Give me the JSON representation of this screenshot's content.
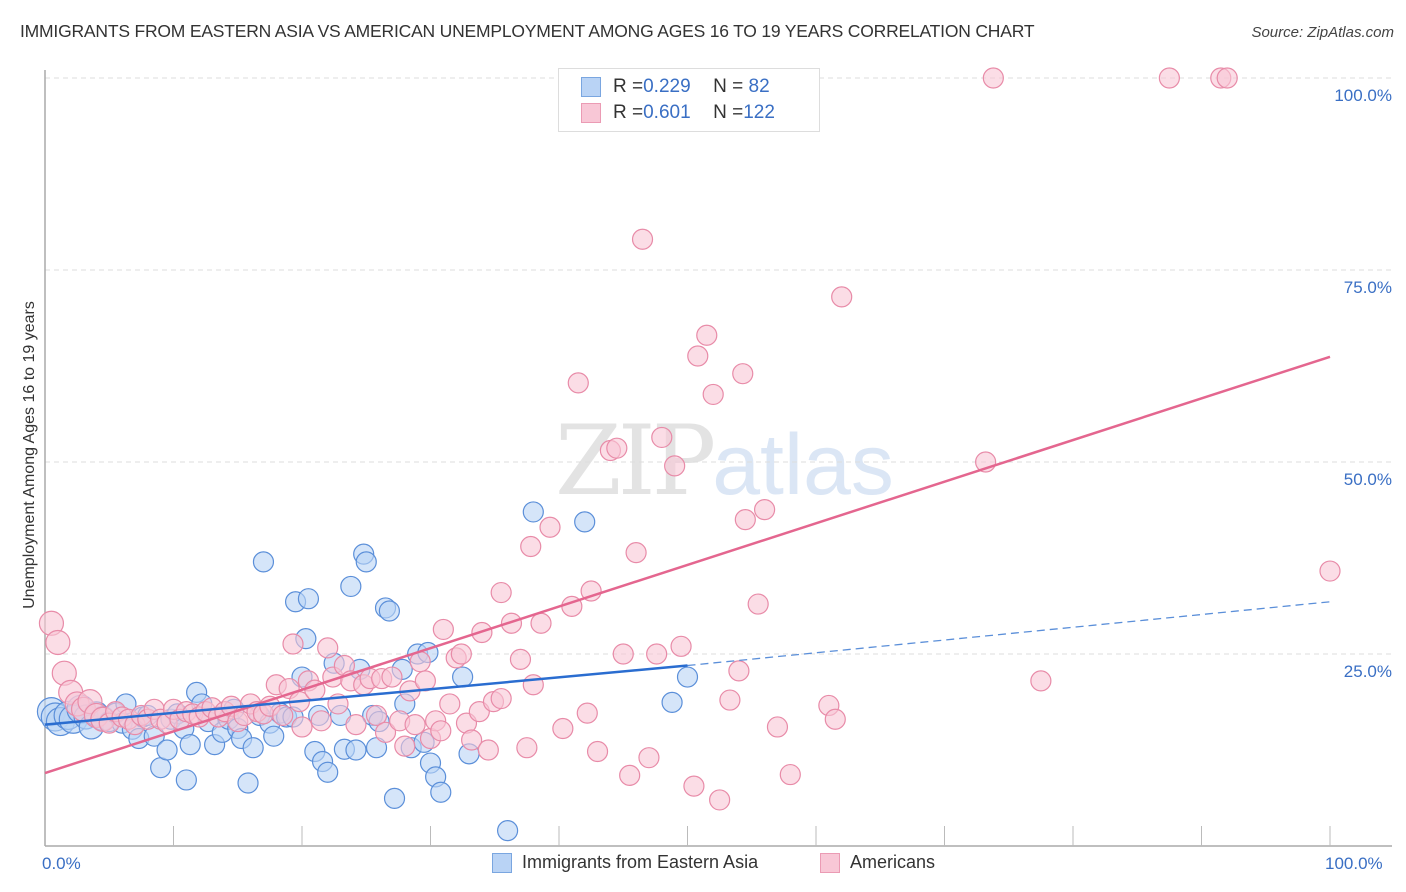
{
  "title": "IMMIGRANTS FROM EASTERN ASIA VS AMERICAN UNEMPLOYMENT AMONG AGES 16 TO 19 YEARS CORRELATION CHART",
  "source": "Source: ZipAtlas.com",
  "watermark": {
    "part1": "ZIP",
    "part2": "atlas"
  },
  "legend_top": [
    {
      "r_label": "R = ",
      "r_value": "0.229",
      "n_label": "N = ",
      "n_value": " 82"
    },
    {
      "r_label": "R = ",
      "r_value": "0.601",
      "n_label": "N = ",
      "n_value": "122"
    }
  ],
  "colors": {
    "blue_fill": "#b9d3f5",
    "blue_stroke": "#5b8fd9",
    "blue_line": "#2a6dd0",
    "pink_fill": "#f8c7d6",
    "pink_stroke": "#e88ba8",
    "pink_line": "#e4668f",
    "tick_label": "#3a6fc4",
    "grid": "#dddddd"
  },
  "chart_data": {
    "type": "scatter",
    "title": "IMMIGRANTS FROM EASTERN ASIA VS AMERICAN UNEMPLOYMENT AMONG AGES 16 TO 19 YEARS CORRELATION CHART",
    "xlabel": "",
    "ylabel": "Unemployment Among Ages 16 to 19 years",
    "xlim": [
      0,
      100
    ],
    "ylim": [
      0,
      100
    ],
    "x_tick_labels": [
      "0.0%",
      "100.0%"
    ],
    "y_tick_labels": [
      {
        "value": 25,
        "label": "25.0%"
      },
      {
        "value": 50,
        "label": "50.0%"
      },
      {
        "value": 75,
        "label": "75.0%"
      },
      {
        "value": 100,
        "label": "100.0%"
      }
    ],
    "grid": "horizontal-dashed",
    "legend_position": "bottom-center",
    "series": [
      {
        "name": "Immigrants from Eastern Asia",
        "r": 0.229,
        "n": 82,
        "trend": {
          "x0": 0,
          "y0": 15.8,
          "x1": 50,
          "y1": 23.5,
          "dashed_to": 100,
          "dashed_y": 31.8
        },
        "points": [
          [
            0.5,
            17.5
          ],
          [
            0.8,
            16.8
          ],
          [
            1.2,
            16.2
          ],
          [
            1.8,
            17.0
          ],
          [
            2.2,
            16.5
          ],
          [
            2.8,
            17.8
          ],
          [
            3.2,
            16.8
          ],
          [
            3.6,
            15.5
          ],
          [
            4.0,
            17.2
          ],
          [
            4.5,
            16.6
          ],
          [
            5.0,
            16.2
          ],
          [
            5.5,
            17.3
          ],
          [
            6.0,
            16.0
          ],
          [
            6.3,
            18.5
          ],
          [
            6.8,
            15.2
          ],
          [
            7.3,
            14.0
          ],
          [
            7.6,
            16.8
          ],
          [
            8.0,
            17.0
          ],
          [
            8.5,
            14.3
          ],
          [
            9.0,
            10.2
          ],
          [
            9.5,
            12.5
          ],
          [
            9.8,
            16.5
          ],
          [
            10.3,
            17.2
          ],
          [
            10.8,
            15.3
          ],
          [
            11.0,
            8.6
          ],
          [
            11.3,
            13.2
          ],
          [
            11.8,
            20.0
          ],
          [
            12.2,
            18.5
          ],
          [
            12.7,
            16.2
          ],
          [
            13.2,
            13.2
          ],
          [
            13.8,
            14.8
          ],
          [
            14.3,
            16.5
          ],
          [
            14.7,
            17.8
          ],
          [
            15.0,
            15.3
          ],
          [
            15.3,
            14.0
          ],
          [
            15.8,
            8.2
          ],
          [
            16.2,
            12.8
          ],
          [
            16.7,
            17.0
          ],
          [
            17.0,
            37.0
          ],
          [
            17.5,
            16.0
          ],
          [
            17.8,
            14.3
          ],
          [
            18.3,
            17.3
          ],
          [
            18.8,
            16.8
          ],
          [
            19.3,
            16.8
          ],
          [
            19.5,
            31.8
          ],
          [
            20.0,
            22.0
          ],
          [
            20.3,
            27.0
          ],
          [
            20.5,
            32.2
          ],
          [
            21.0,
            12.3
          ],
          [
            21.3,
            17.0
          ],
          [
            21.6,
            11.0
          ],
          [
            22.0,
            9.6
          ],
          [
            22.5,
            23.8
          ],
          [
            23.0,
            17.0
          ],
          [
            23.3,
            12.6
          ],
          [
            23.8,
            33.8
          ],
          [
            24.2,
            12.5
          ],
          [
            24.5,
            23.0
          ],
          [
            24.8,
            38.0
          ],
          [
            25.0,
            37.0
          ],
          [
            25.5,
            17.0
          ],
          [
            25.8,
            12.8
          ],
          [
            26.0,
            16.2
          ],
          [
            26.5,
            31.0
          ],
          [
            26.8,
            30.6
          ],
          [
            27.2,
            6.2
          ],
          [
            27.8,
            23.0
          ],
          [
            28.0,
            18.5
          ],
          [
            28.5,
            12.8
          ],
          [
            29.0,
            25.0
          ],
          [
            29.5,
            13.5
          ],
          [
            29.8,
            25.2
          ],
          [
            30.0,
            10.8
          ],
          [
            30.4,
            9.0
          ],
          [
            30.8,
            7.0
          ],
          [
            32.5,
            22.0
          ],
          [
            33.0,
            12.0
          ],
          [
            36.0,
            2.0
          ],
          [
            38.0,
            43.5
          ],
          [
            42.0,
            42.2
          ],
          [
            50.0,
            22.0
          ],
          [
            48.8,
            18.7
          ]
        ]
      },
      {
        "name": "Americans",
        "r": 0.601,
        "n": 122,
        "trend": {
          "x0": 0,
          "y0": 9.5,
          "x1": 100,
          "y1": 63.7
        },
        "points": [
          [
            0.5,
            29.0
          ],
          [
            1.0,
            26.5
          ],
          [
            1.5,
            22.5
          ],
          [
            2.0,
            20.0
          ],
          [
            2.5,
            18.5
          ],
          [
            3.0,
            17.8
          ],
          [
            3.5,
            18.8
          ],
          [
            4.0,
            17.0
          ],
          [
            4.5,
            16.5
          ],
          [
            5.0,
            16.0
          ],
          [
            5.5,
            17.5
          ],
          [
            6.0,
            16.8
          ],
          [
            6.5,
            16.5
          ],
          [
            7.0,
            15.8
          ],
          [
            7.5,
            17.0
          ],
          [
            8.0,
            16.5
          ],
          [
            8.5,
            17.8
          ],
          [
            9.0,
            16.5
          ],
          [
            9.5,
            16.0
          ],
          [
            10.0,
            17.8
          ],
          [
            10.5,
            16.5
          ],
          [
            11.0,
            17.5
          ],
          [
            11.5,
            17.2
          ],
          [
            12.0,
            16.8
          ],
          [
            12.5,
            17.5
          ],
          [
            13.0,
            18.0
          ],
          [
            13.5,
            16.8
          ],
          [
            14.0,
            17.5
          ],
          [
            14.5,
            18.2
          ],
          [
            15.0,
            16.2
          ],
          [
            15.5,
            17.0
          ],
          [
            16.0,
            18.5
          ],
          [
            16.5,
            17.5
          ],
          [
            17.0,
            17.2
          ],
          [
            17.5,
            18.2
          ],
          [
            18.0,
            21.0
          ],
          [
            18.5,
            17.0
          ],
          [
            19.0,
            20.5
          ],
          [
            19.3,
            26.3
          ],
          [
            19.8,
            18.8
          ],
          [
            20.0,
            15.5
          ],
          [
            20.5,
            21.5
          ],
          [
            21.0,
            20.3
          ],
          [
            21.5,
            16.3
          ],
          [
            22.0,
            25.8
          ],
          [
            22.4,
            22.0
          ],
          [
            22.8,
            18.5
          ],
          [
            23.3,
            23.5
          ],
          [
            23.8,
            21.5
          ],
          [
            24.2,
            15.8
          ],
          [
            24.8,
            21.0
          ],
          [
            25.3,
            21.8
          ],
          [
            25.8,
            17.0
          ],
          [
            26.2,
            21.8
          ],
          [
            26.5,
            14.8
          ],
          [
            27.0,
            22.0
          ],
          [
            27.6,
            16.3
          ],
          [
            28.0,
            13.0
          ],
          [
            28.4,
            20.2
          ],
          [
            28.8,
            15.8
          ],
          [
            29.2,
            24.0
          ],
          [
            29.6,
            21.5
          ],
          [
            30.0,
            14.0
          ],
          [
            30.4,
            16.3
          ],
          [
            30.8,
            15.0
          ],
          [
            31.0,
            28.2
          ],
          [
            31.5,
            18.5
          ],
          [
            32.0,
            24.5
          ],
          [
            32.4,
            25.0
          ],
          [
            32.8,
            16.0
          ],
          [
            33.2,
            13.8
          ],
          [
            33.8,
            17.5
          ],
          [
            34.0,
            27.8
          ],
          [
            34.5,
            12.5
          ],
          [
            34.9,
            18.8
          ],
          [
            35.5,
            19.2
          ],
          [
            35.5,
            33.0
          ],
          [
            36.3,
            29.0
          ],
          [
            37.0,
            24.3
          ],
          [
            37.5,
            12.8
          ],
          [
            37.8,
            39.0
          ],
          [
            38.0,
            21.0
          ],
          [
            38.6,
            29.0
          ],
          [
            39.3,
            41.5
          ],
          [
            40.3,
            15.3
          ],
          [
            41.0,
            31.2
          ],
          [
            41.5,
            60.3
          ],
          [
            42.2,
            17.3
          ],
          [
            42.5,
            33.2
          ],
          [
            43.0,
            12.3
          ],
          [
            44.0,
            51.5
          ],
          [
            44.5,
            51.8
          ],
          [
            45.0,
            25.0
          ],
          [
            45.5,
            9.2
          ],
          [
            46.0,
            38.2
          ],
          [
            46.5,
            79.0
          ],
          [
            47.0,
            11.5
          ],
          [
            47.6,
            25.0
          ],
          [
            48.0,
            53.2
          ],
          [
            49.0,
            49.5
          ],
          [
            49.5,
            26.0
          ],
          [
            50.5,
            7.8
          ],
          [
            50.8,
            63.8
          ],
          [
            51.5,
            66.5
          ],
          [
            52.0,
            58.8
          ],
          [
            52.5,
            6.0
          ],
          [
            53.3,
            19.0
          ],
          [
            54.0,
            22.8
          ],
          [
            54.3,
            61.5
          ],
          [
            54.5,
            42.5
          ],
          [
            55.5,
            31.5
          ],
          [
            56.0,
            43.8
          ],
          [
            57.0,
            15.5
          ],
          [
            58.0,
            9.3
          ],
          [
            61.0,
            18.3
          ],
          [
            61.5,
            16.5
          ],
          [
            62.0,
            71.5
          ],
          [
            73.2,
            50.0
          ],
          [
            73.8,
            100.0
          ],
          [
            77.5,
            21.5
          ],
          [
            87.5,
            100.0
          ],
          [
            91.5,
            100.0
          ],
          [
            92.0,
            100.0
          ],
          [
            100,
            35.8
          ]
        ]
      }
    ]
  },
  "bottom_legend": [
    {
      "label": "Immigrants from Eastern Asia"
    },
    {
      "label": "Americans"
    }
  ]
}
